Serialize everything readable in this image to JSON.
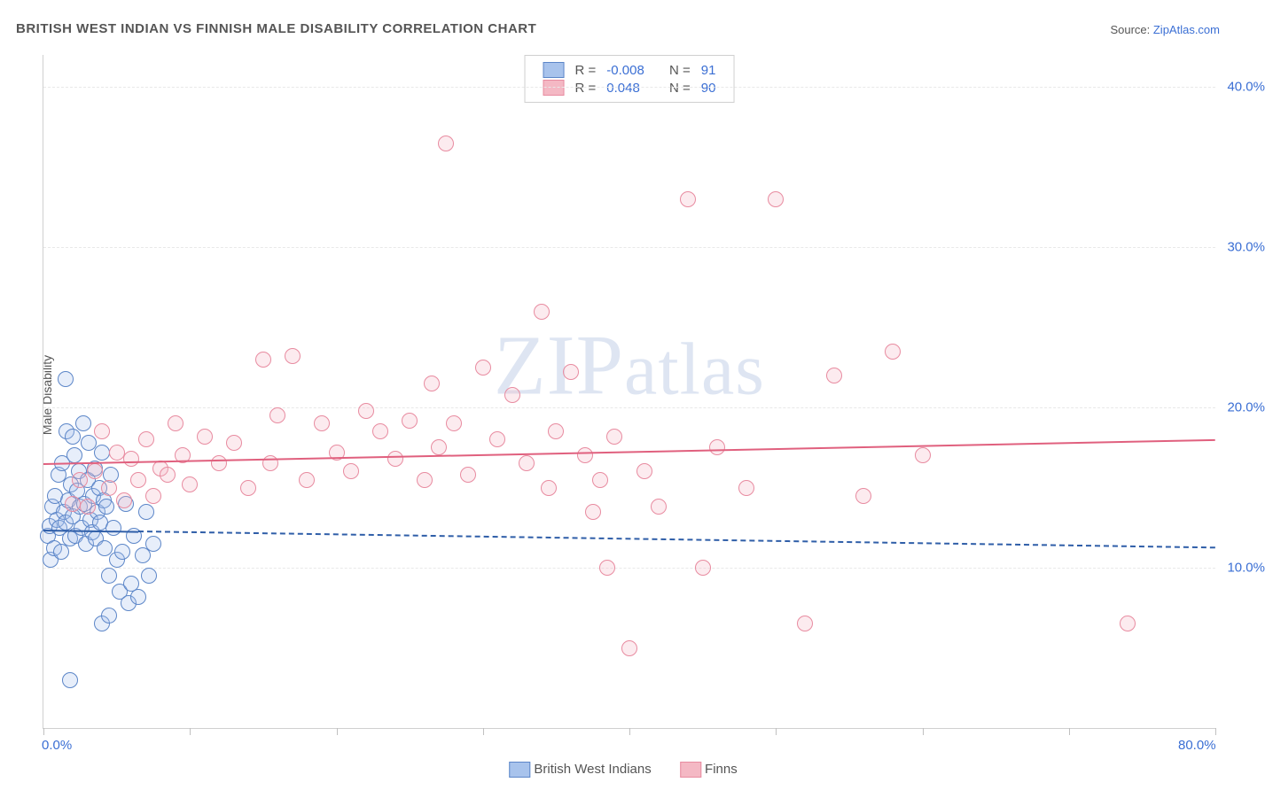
{
  "title": "BRITISH WEST INDIAN VS FINNISH MALE DISABILITY CORRELATION CHART",
  "source_label": "Source: ",
  "source_link": "ZipAtlas.com",
  "y_axis_label": "Male Disability",
  "watermark": "ZIPatlas",
  "chart": {
    "type": "scatter",
    "xlim": [
      0,
      80
    ],
    "ylim": [
      0,
      42
    ],
    "background_color": "#ffffff",
    "grid_color": "#e8e8e8",
    "axis_color": "#d0d0d0",
    "x_ticks": [
      0,
      10,
      20,
      30,
      40,
      50,
      60,
      70,
      80
    ],
    "x_tick_labels": {
      "0": "0.0%",
      "80": "80.0%"
    },
    "y_grid": [
      10,
      20,
      30,
      40
    ],
    "y_tick_labels": {
      "10": "10.0%",
      "20": "20.0%",
      "30": "30.0%",
      "40": "40.0%"
    },
    "tick_label_color": "#3b6fd4",
    "tick_label_fontsize": 15,
    "marker_radius": 9,
    "marker_border_width": 1.5,
    "marker_fill_opacity": 0.28,
    "trend_width": 2.5
  },
  "series": [
    {
      "key": "bwi",
      "label": "British West Indians",
      "color_fill": "#a8c3ec",
      "color_border": "#5c86c8",
      "trend_color": "#2f5ea8",
      "trend_style": "dashed",
      "trend": {
        "x1": 0,
        "y1": 12.4,
        "x2": 80,
        "y2": 11.3
      },
      "trend_solid_until_x": 6.5,
      "R": "-0.008",
      "N": "91",
      "points": [
        [
          0.3,
          12.0
        ],
        [
          0.4,
          12.6
        ],
        [
          0.5,
          10.5
        ],
        [
          0.6,
          13.8
        ],
        [
          0.7,
          11.2
        ],
        [
          0.8,
          14.5
        ],
        [
          0.9,
          13.0
        ],
        [
          1.0,
          15.8
        ],
        [
          1.1,
          12.5
        ],
        [
          1.2,
          11.0
        ],
        [
          1.3,
          16.5
        ],
        [
          1.4,
          13.5
        ],
        [
          1.5,
          12.8
        ],
        [
          1.6,
          18.5
        ],
        [
          1.7,
          14.2
        ],
        [
          1.8,
          11.8
        ],
        [
          1.9,
          15.2
        ],
        [
          2.0,
          13.2
        ],
        [
          2.1,
          17.0
        ],
        [
          2.2,
          12.0
        ],
        [
          2.3,
          14.8
        ],
        [
          2.4,
          16.0
        ],
        [
          2.5,
          13.8
        ],
        [
          2.6,
          12.5
        ],
        [
          2.7,
          19.0
        ],
        [
          2.8,
          14.0
        ],
        [
          2.9,
          11.5
        ],
        [
          3.0,
          15.5
        ],
        [
          3.1,
          17.8
        ],
        [
          3.2,
          13.0
        ],
        [
          3.3,
          12.2
        ],
        [
          3.4,
          14.5
        ],
        [
          3.5,
          16.2
        ],
        [
          3.6,
          11.8
        ],
        [
          3.7,
          13.5
        ],
        [
          3.8,
          15.0
        ],
        [
          3.9,
          12.8
        ],
        [
          4.0,
          17.2
        ],
        [
          4.1,
          14.2
        ],
        [
          4.2,
          11.2
        ],
        [
          4.3,
          13.8
        ],
        [
          4.5,
          9.5
        ],
        [
          4.6,
          15.8
        ],
        [
          4.8,
          12.5
        ],
        [
          5.0,
          10.5
        ],
        [
          5.2,
          8.5
        ],
        [
          5.4,
          11.0
        ],
        [
          5.6,
          14.0
        ],
        [
          5.8,
          7.8
        ],
        [
          6.0,
          9.0
        ],
        [
          6.2,
          12.0
        ],
        [
          6.5,
          8.2
        ],
        [
          6.8,
          10.8
        ],
        [
          7.0,
          13.5
        ],
        [
          7.2,
          9.5
        ],
        [
          7.5,
          11.5
        ],
        [
          1.5,
          21.8
        ],
        [
          1.8,
          3.0
        ],
        [
          2.0,
          18.2
        ],
        [
          4.0,
          6.5
        ],
        [
          4.5,
          7.0
        ]
      ]
    },
    {
      "key": "finns",
      "label": "Finns",
      "color_fill": "#f4b8c4",
      "color_border": "#e88ba0",
      "trend_color": "#e0607e",
      "trend_style": "solid",
      "trend": {
        "x1": 0,
        "y1": 16.5,
        "x2": 80,
        "y2": 18.0
      },
      "R": "0.048",
      "N": "90",
      "points": [
        [
          2.0,
          14.0
        ],
        [
          2.5,
          15.5
        ],
        [
          3.0,
          13.8
        ],
        [
          3.5,
          16.0
        ],
        [
          4.0,
          18.5
        ],
        [
          4.5,
          15.0
        ],
        [
          5.0,
          17.2
        ],
        [
          5.5,
          14.2
        ],
        [
          6.0,
          16.8
        ],
        [
          6.5,
          15.5
        ],
        [
          7.0,
          18.0
        ],
        [
          7.5,
          14.5
        ],
        [
          8.0,
          16.2
        ],
        [
          8.5,
          15.8
        ],
        [
          9.0,
          19.0
        ],
        [
          9.5,
          17.0
        ],
        [
          10.0,
          15.2
        ],
        [
          11.0,
          18.2
        ],
        [
          12.0,
          16.5
        ],
        [
          13.0,
          17.8
        ],
        [
          14.0,
          15.0
        ],
        [
          15.0,
          23.0
        ],
        [
          15.5,
          16.5
        ],
        [
          16.0,
          19.5
        ],
        [
          17.0,
          23.2
        ],
        [
          18.0,
          15.5
        ],
        [
          19.0,
          19.0
        ],
        [
          20.0,
          17.2
        ],
        [
          21.0,
          16.0
        ],
        [
          22.0,
          19.8
        ],
        [
          23.0,
          18.5
        ],
        [
          24.0,
          16.8
        ],
        [
          25.0,
          19.2
        ],
        [
          26.0,
          15.5
        ],
        [
          26.5,
          21.5
        ],
        [
          27.0,
          17.5
        ],
        [
          27.5,
          36.5
        ],
        [
          28.0,
          19.0
        ],
        [
          29.0,
          15.8
        ],
        [
          30.0,
          22.5
        ],
        [
          31.0,
          18.0
        ],
        [
          32.0,
          20.8
        ],
        [
          33.0,
          16.5
        ],
        [
          34.0,
          26.0
        ],
        [
          34.5,
          15.0
        ],
        [
          35.0,
          18.5
        ],
        [
          36.0,
          22.2
        ],
        [
          37.0,
          17.0
        ],
        [
          37.5,
          13.5
        ],
        [
          38.0,
          15.5
        ],
        [
          38.5,
          10.0
        ],
        [
          39.0,
          18.2
        ],
        [
          40.0,
          5.0
        ],
        [
          41.0,
          16.0
        ],
        [
          42.0,
          13.8
        ],
        [
          44.0,
          33.0
        ],
        [
          45.0,
          10.0
        ],
        [
          46.0,
          17.5
        ],
        [
          48.0,
          15.0
        ],
        [
          50.0,
          33.0
        ],
        [
          52.0,
          6.5
        ],
        [
          54.0,
          22.0
        ],
        [
          56.0,
          14.5
        ],
        [
          58.0,
          23.5
        ],
        [
          60.0,
          17.0
        ],
        [
          74.0,
          6.5
        ]
      ]
    }
  ],
  "legend_top": {
    "r_label": "R =",
    "n_label": "N ="
  },
  "legend_bottom": {
    "items": [
      "British West Indians",
      "Finns"
    ]
  }
}
